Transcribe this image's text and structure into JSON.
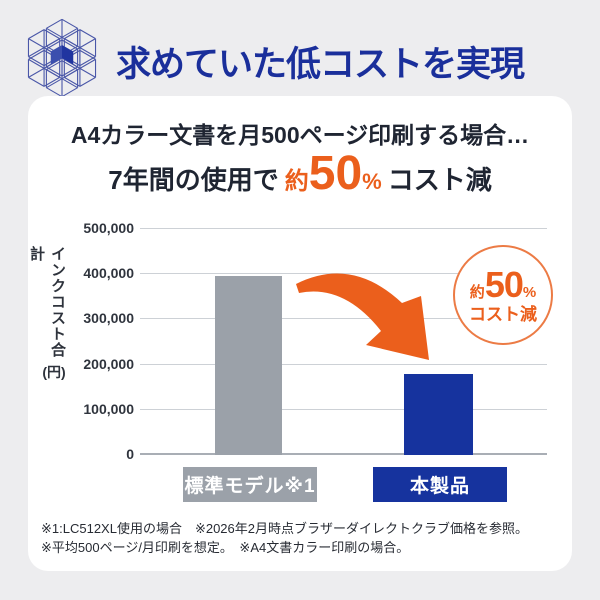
{
  "header": {
    "title": "求めていた低コストを実現",
    "icon": "cube-lattice-icon"
  },
  "hero": {
    "line1": "A4カラー文書を月500ページ印刷する場合…",
    "line2_prefix": "7年間の使用で",
    "line2_approx": "約",
    "line2_value": "50",
    "line2_percent": "%",
    "line2_suffix": "コスト減"
  },
  "badge": {
    "approx": "約",
    "value": "50",
    "percent": "%",
    "label": "コスト減"
  },
  "footnotes": {
    "line1": "※1:LC512XL使用の場合　※2026年2月時点ブラザーダイレクトクラブ価格を参照。",
    "line2": "※平均500ページ/月印刷を想定。　※A4文書カラー印刷の場合。"
  },
  "chart_data": {
    "type": "bar",
    "title": "",
    "categories": [
      "標準モデル※1",
      "本製品"
    ],
    "values": [
      395000,
      180000
    ],
    "xlabel": "",
    "ylabel": "インクコスト合計(円)",
    "ylabel_vertical_text": "インクコスト合計",
    "ylabel_unit": "(円)",
    "ylim": [
      0,
      500000
    ],
    "yticks": [
      0,
      100000,
      200000,
      300000,
      400000,
      500000
    ],
    "ytick_labels": [
      "0",
      "100,000",
      "200,000",
      "300,000",
      "400,000",
      "500,000"
    ],
    "grid": true,
    "legend": false,
    "bar_colors": [
      "#9BA1A9",
      "#16339E"
    ],
    "annotation": {
      "text": "約50%コスト減",
      "style": "circle-badge"
    }
  },
  "colors": {
    "page_bg": "#EDEDEF",
    "card_bg": "#FFFFFF",
    "header_blue": "#1A2F9B",
    "text_dark": "#1F2532",
    "accent_orange": "#EB5F1C",
    "badge_ring": "#EC7B45",
    "bar_gray": "#9BA1A9",
    "brand_blue": "#16339E",
    "gridline": "#CDD1D6",
    "baseline": "#A9AEB5",
    "label_text_white": "#FFFFFF"
  }
}
